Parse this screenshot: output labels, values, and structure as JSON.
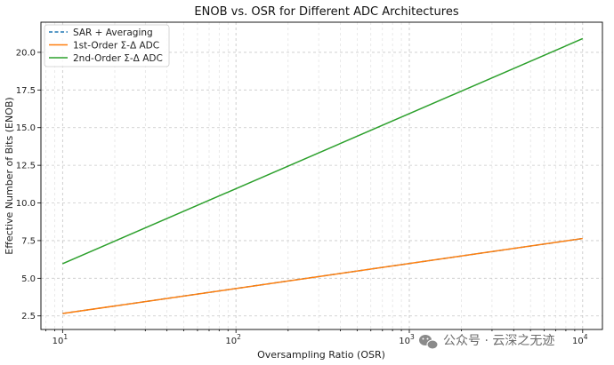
{
  "chart_data": {
    "type": "line",
    "title": "ENOB vs. OSR for Different ADC Architectures",
    "xlabel": "Oversampling Ratio (OSR)",
    "ylabel": "Effective Number of Bits (ENOB)",
    "xscale": "log",
    "xlim": [
      7.5,
      13000
    ],
    "ylim": [
      1.6,
      22.0
    ],
    "grid": "on",
    "legend_position": "top-left",
    "x_tick_labels": [
      "10",
      "10",
      "10",
      "10"
    ],
    "x_tick_exponents": [
      "1",
      "2",
      "3",
      "4"
    ],
    "x_tick_values": [
      10,
      100,
      1000,
      10000
    ],
    "y_ticks": [
      2.5,
      5.0,
      7.5,
      10.0,
      12.5,
      15.0,
      17.5,
      20.0
    ],
    "y_tick_labels": [
      "2.5",
      "5.0",
      "7.5",
      "10.0",
      "12.5",
      "15.0",
      "17.5",
      "20.0"
    ],
    "series": [
      {
        "name": "SAR + Averaging",
        "color": "#1f77b4",
        "style": "dashed",
        "x": [
          10,
          10000
        ],
        "y": [
          2.66,
          7.64
        ]
      },
      {
        "name": "1st-Order Σ-Δ ADC",
        "color": "#ff7f0e",
        "style": "solid",
        "x": [
          10,
          10000
        ],
        "y": [
          2.66,
          7.64
        ]
      },
      {
        "name": "2nd-Order Σ-Δ ADC",
        "color": "#2ca02c",
        "style": "solid",
        "x": [
          10,
          10000
        ],
        "y": [
          5.97,
          20.91
        ]
      }
    ]
  },
  "watermark": {
    "text": "公众号 · 云深之无迹",
    "icon": "wechat-icon"
  }
}
